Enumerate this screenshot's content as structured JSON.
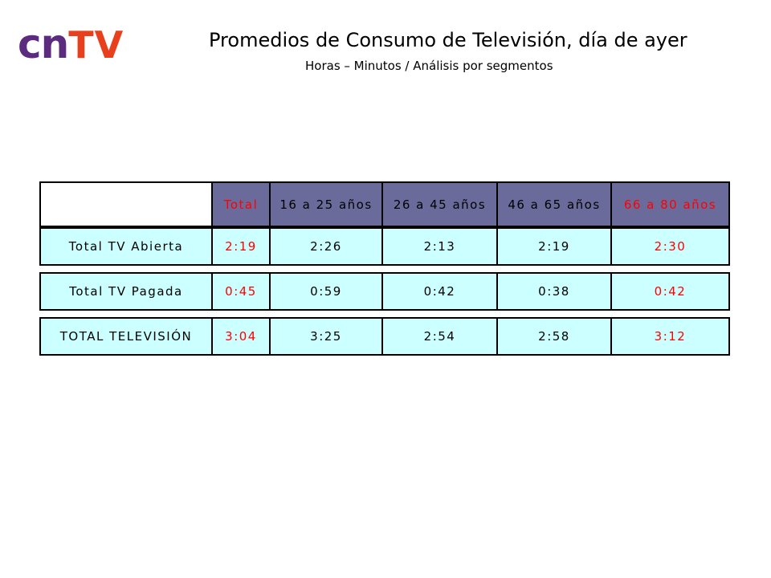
{
  "logo": {
    "part1": "cn",
    "part2": "TV"
  },
  "header": {
    "title": "Promedios de Consumo de Televisión, día de ayer",
    "subtitle": "Horas – Minutos / Análisis por segmentos"
  },
  "table": {
    "columns": [
      "Total",
      "16 a 25 años",
      "26 a 45 años",
      "46 a 65 años",
      "66 a 80 años"
    ],
    "rows": [
      {
        "label": "Total TV Abierta",
        "values": [
          "2:19",
          "2:26",
          "2:13",
          "2:19",
          "2:30"
        ]
      },
      {
        "label": "Total TV Pagada",
        "values": [
          "0:45",
          "0:59",
          "0:42",
          "0:38",
          "0:42"
        ]
      },
      {
        "label": "TOTAL TELEVISIÓN",
        "values": [
          "3:04",
          "3:25",
          "2:54",
          "2:58",
          "3:12"
        ]
      }
    ]
  },
  "colors": {
    "logo_purple": "#5c2a7e",
    "logo_orange": "#e8401c",
    "header_fill": "#6a6b9b",
    "row_fill": "#ccffff",
    "highlight_text": "#ff0000"
  }
}
